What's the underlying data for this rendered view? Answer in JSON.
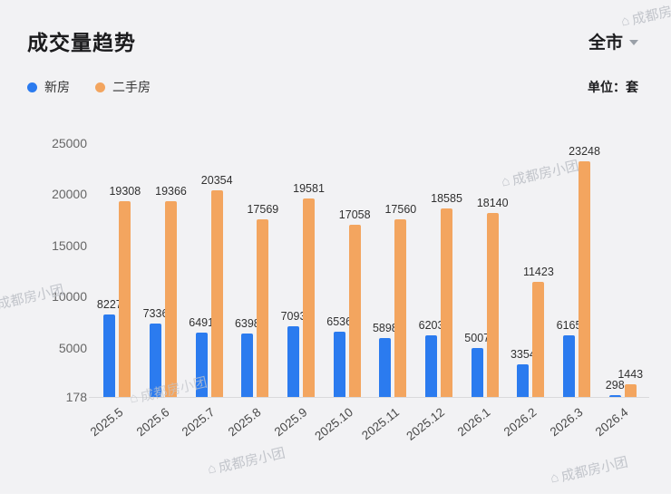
{
  "header": {
    "title": "成交量趋势",
    "region": "全市",
    "unit_label": "单位：套"
  },
  "legend": [
    {
      "key": "new-home",
      "label": "新房",
      "color": "#2B7BEF"
    },
    {
      "key": "resale",
      "label": "二手房",
      "color": "#F3A55F"
    }
  ],
  "watermark": {
    "icon": "house-logo-icon",
    "icon_glyph": "⌂",
    "text": "成都房小团"
  },
  "chart_data": {
    "type": "bar",
    "title": "成交量趋势",
    "unit": "套",
    "categories": [
      "2025.5",
      "2025.6",
      "2025.7",
      "2025.8",
      "2025.9",
      "2025.10",
      "2025.11",
      "2025.12",
      "2026.1",
      "2026.2",
      "2026.3",
      "2026.4"
    ],
    "series": [
      {
        "name": "新房",
        "key": "new-home",
        "color": "#2B7BEF",
        "values": [
          8227,
          7336,
          6491,
          6398,
          7093,
          6536,
          5898,
          6203,
          5007,
          3354,
          6165,
          298
        ]
      },
      {
        "name": "二手房",
        "key": "resale",
        "color": "#F3A55F",
        "values": [
          19308,
          19366,
          20354,
          17569,
          19581,
          17058,
          17560,
          18585,
          18140,
          11423,
          23248,
          1443
        ]
      }
    ],
    "xlabel": "",
    "ylabel": "",
    "y_ticks": [
      25000,
      20000,
      15000,
      10000,
      5000,
      178
    ],
    "ylim": [
      178,
      25000
    ],
    "grid": false,
    "legend_position": "top-left"
  }
}
